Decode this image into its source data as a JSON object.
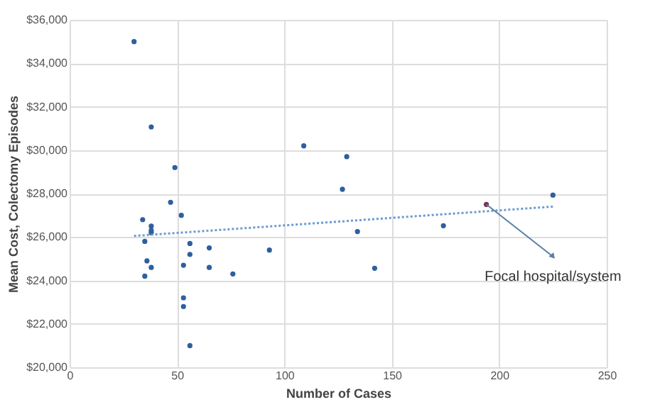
{
  "chart_data": {
    "type": "scatter",
    "xlabel": "Number of Cases",
    "ylabel": "Mean Cost, Colectomy Episodes",
    "x": [
      30,
      38,
      49,
      47,
      52,
      34,
      38,
      38,
      38,
      35,
      56,
      56,
      65,
      36,
      38,
      53,
      65,
      35,
      76,
      93,
      53,
      53,
      56,
      109,
      129,
      127,
      134,
      142,
      174,
      194,
      225
    ],
    "series": [
      {
        "color": "#2e5f9e",
        "marker": "circle",
        "colors": [
          "#2e5f9e",
          "#2e5f9e",
          "#2e5f9e",
          "#2e5f9e",
          "#2e5f9e",
          "#2e5f9e",
          "#2e5f9e",
          "#2e5f9e",
          "#2e5f9e",
          "#2e5f9e",
          "#2e5f9e",
          "#2e5f9e",
          "#2e5f9e",
          "#2e5f9e",
          "#2e5f9e",
          "#2e5f9e",
          "#2e5f9e",
          "#2e5f9e",
          "#2e5f9e",
          "#2e5f9e",
          "#2e5f9e",
          "#2e5f9e",
          "#2e5f9e",
          "#2e5f9e",
          "#2e5f9e",
          "#2e5f9e",
          "#2e5f9e",
          "#2e5f9e",
          "#2e5f9e",
          "#7a3045",
          "#2e5f9e"
        ],
        "values": [
          35000,
          31070,
          29200,
          27600,
          27000,
          26800,
          26500,
          26300,
          26200,
          25800,
          25700,
          25200,
          25500,
          24900,
          24600,
          24700,
          24600,
          24200,
          24300,
          25400,
          23200,
          22800,
          21000,
          30200,
          29700,
          28200,
          26250,
          24560,
          26520,
          27500,
          27930
        ]
      },
      {
        "type": "line",
        "color": "#6a9bd1",
        "line_style": "dotted",
        "x": [
          30,
          225
        ],
        "values": [
          26050,
          27400
        ]
      }
    ],
    "xlim": [
      0,
      250
    ],
    "xticks": [
      0,
      50,
      100,
      150,
      200,
      250
    ],
    "ylim": [
      20000,
      36000
    ],
    "yticks": [
      {
        "value": 20000,
        "label": "$20,000"
      },
      {
        "value": 22000,
        "label": "$22,000"
      },
      {
        "value": 24000,
        "label": "$24,000"
      },
      {
        "value": 26000,
        "label": "$26,000"
      },
      {
        "value": 28000,
        "label": "$28,000"
      },
      {
        "value": 30000,
        "label": "$30,000"
      },
      {
        "value": 32000,
        "label": "$32,000"
      },
      {
        "value": 34000,
        "label": "$34,000"
      },
      {
        "value": 36000,
        "label": "$36,000"
      }
    ],
    "grid": true,
    "annotations": [
      {
        "text": "Focal hospital/system",
        "x": 194,
        "y": 27500
      }
    ]
  }
}
